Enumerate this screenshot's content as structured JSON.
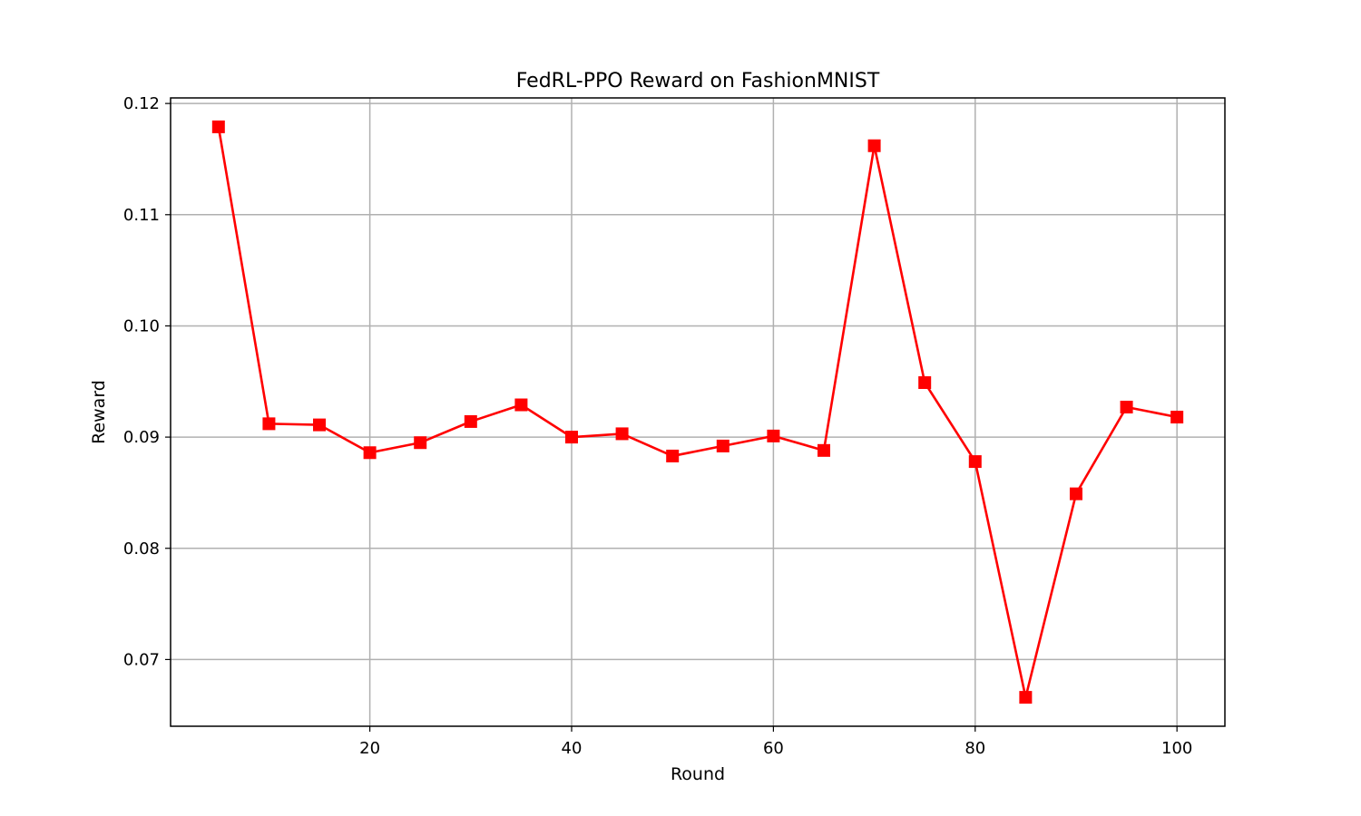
{
  "chart_data": {
    "type": "line",
    "title": "FedRL-PPO Reward on FashionMNIST",
    "xlabel": "Round",
    "ylabel": "Reward",
    "xlim": [
      0.25,
      104.75
    ],
    "ylim": [
      0.064,
      0.1205
    ],
    "xticks": [
      20,
      40,
      60,
      80,
      100
    ],
    "yticks": [
      0.07,
      0.08,
      0.09,
      0.1,
      0.11,
      0.12
    ],
    "ytick_labels": [
      "0.07",
      "0.08",
      "0.09",
      "0.10",
      "0.11",
      "0.12"
    ],
    "grid": true,
    "series": [
      {
        "color": "#ff0000",
        "marker": "square",
        "x": [
          5,
          10,
          15,
          20,
          25,
          30,
          35,
          40,
          45,
          50,
          55,
          60,
          65,
          70,
          75,
          80,
          85,
          90,
          95,
          100
        ],
        "y": [
          0.1179,
          0.0912,
          0.0911,
          0.0886,
          0.0895,
          0.0914,
          0.0929,
          0.09,
          0.0903,
          0.0883,
          0.0892,
          0.0901,
          0.0888,
          0.1162,
          0.0949,
          0.0878,
          0.0666,
          0.0849,
          0.0927,
          0.0918
        ]
      }
    ]
  }
}
